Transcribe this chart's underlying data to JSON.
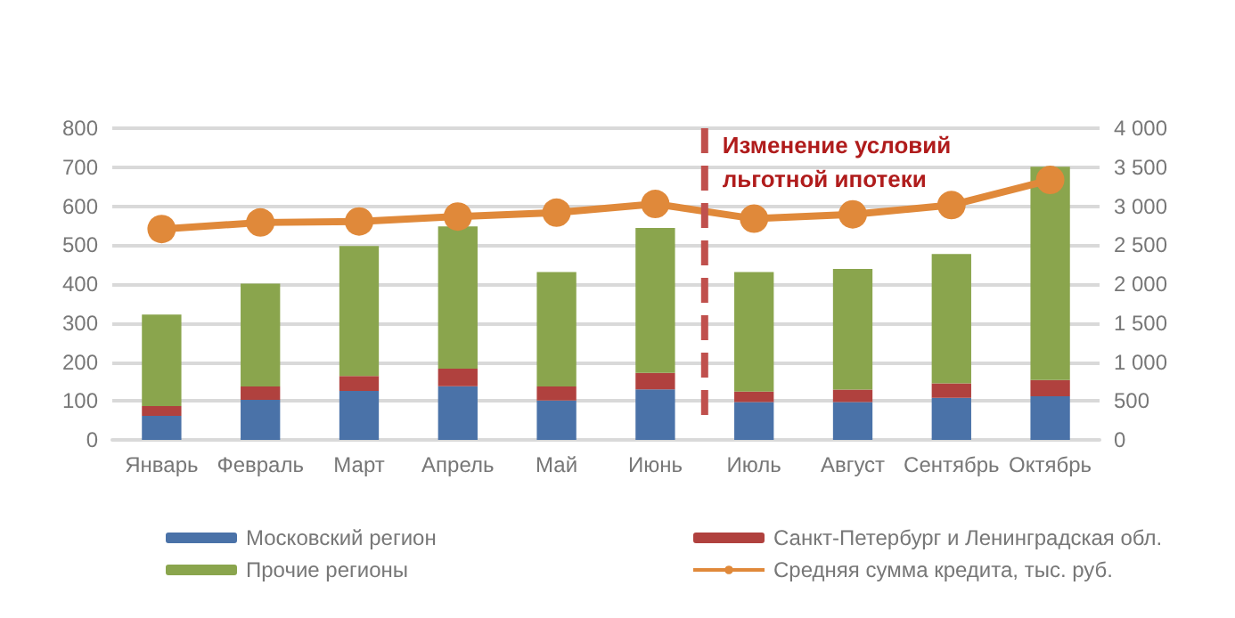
{
  "chart_data": {
    "type": "bar",
    "stacked": true,
    "categories": [
      "Январь",
      "Февраль",
      "Март",
      "Апрель",
      "Май",
      "Июнь",
      "Июль",
      "Август",
      "Сентябрь",
      "Октябрь"
    ],
    "series": [
      {
        "name": "Московский регион",
        "color": "#4a72a8",
        "values": [
          62,
          103,
          126,
          138,
          101,
          130,
          97,
          97,
          108,
          112
        ]
      },
      {
        "name": "Санкт-Петербург и Ленинградская обл.",
        "color": "#b0413e",
        "values": [
          25,
          34,
          38,
          45,
          36,
          42,
          27,
          32,
          37,
          42
        ]
      },
      {
        "name": "Прочие регионы",
        "color": "#8aa54d",
        "values": [
          235,
          264,
          334,
          365,
          294,
          372,
          307,
          310,
          332,
          547
        ]
      },
      {
        "name": "Средняя сумма кредита, тыс. руб.",
        "type": "line",
        "axis": "y2",
        "color": "#e0893a",
        "marker": "circle",
        "values": [
          2706,
          2790,
          2804,
          2867,
          2916,
          3028,
          2839,
          2895,
          3014,
          3336
        ]
      }
    ],
    "ylim": [
      0,
      800
    ],
    "yticks": [
      0,
      100,
      200,
      300,
      400,
      500,
      600,
      700,
      800
    ],
    "y2lim": [
      0,
      4000
    ],
    "y2ticks": [
      0,
      500,
      {
        "value": 1000,
        "label": "1 000"
      },
      {
        "value": 1500,
        "label": "1 500"
      },
      {
        "value": 2000,
        "label": "2 000"
      },
      {
        "value": 2500,
        "label": "2 500"
      },
      {
        "value": 3000,
        "label": "3 000"
      },
      {
        "value": 3500,
        "label": "3 500"
      },
      {
        "value": 4000,
        "label": "4 000"
      }
    ],
    "ref_lines": [
      {
        "axis": "x",
        "value": "Июль",
        "label": "Изменение условий\nльготной ипотеки",
        "color": "#c0504d",
        "line_style": "dashed"
      }
    ],
    "grid": "y",
    "legend": "bottom"
  }
}
